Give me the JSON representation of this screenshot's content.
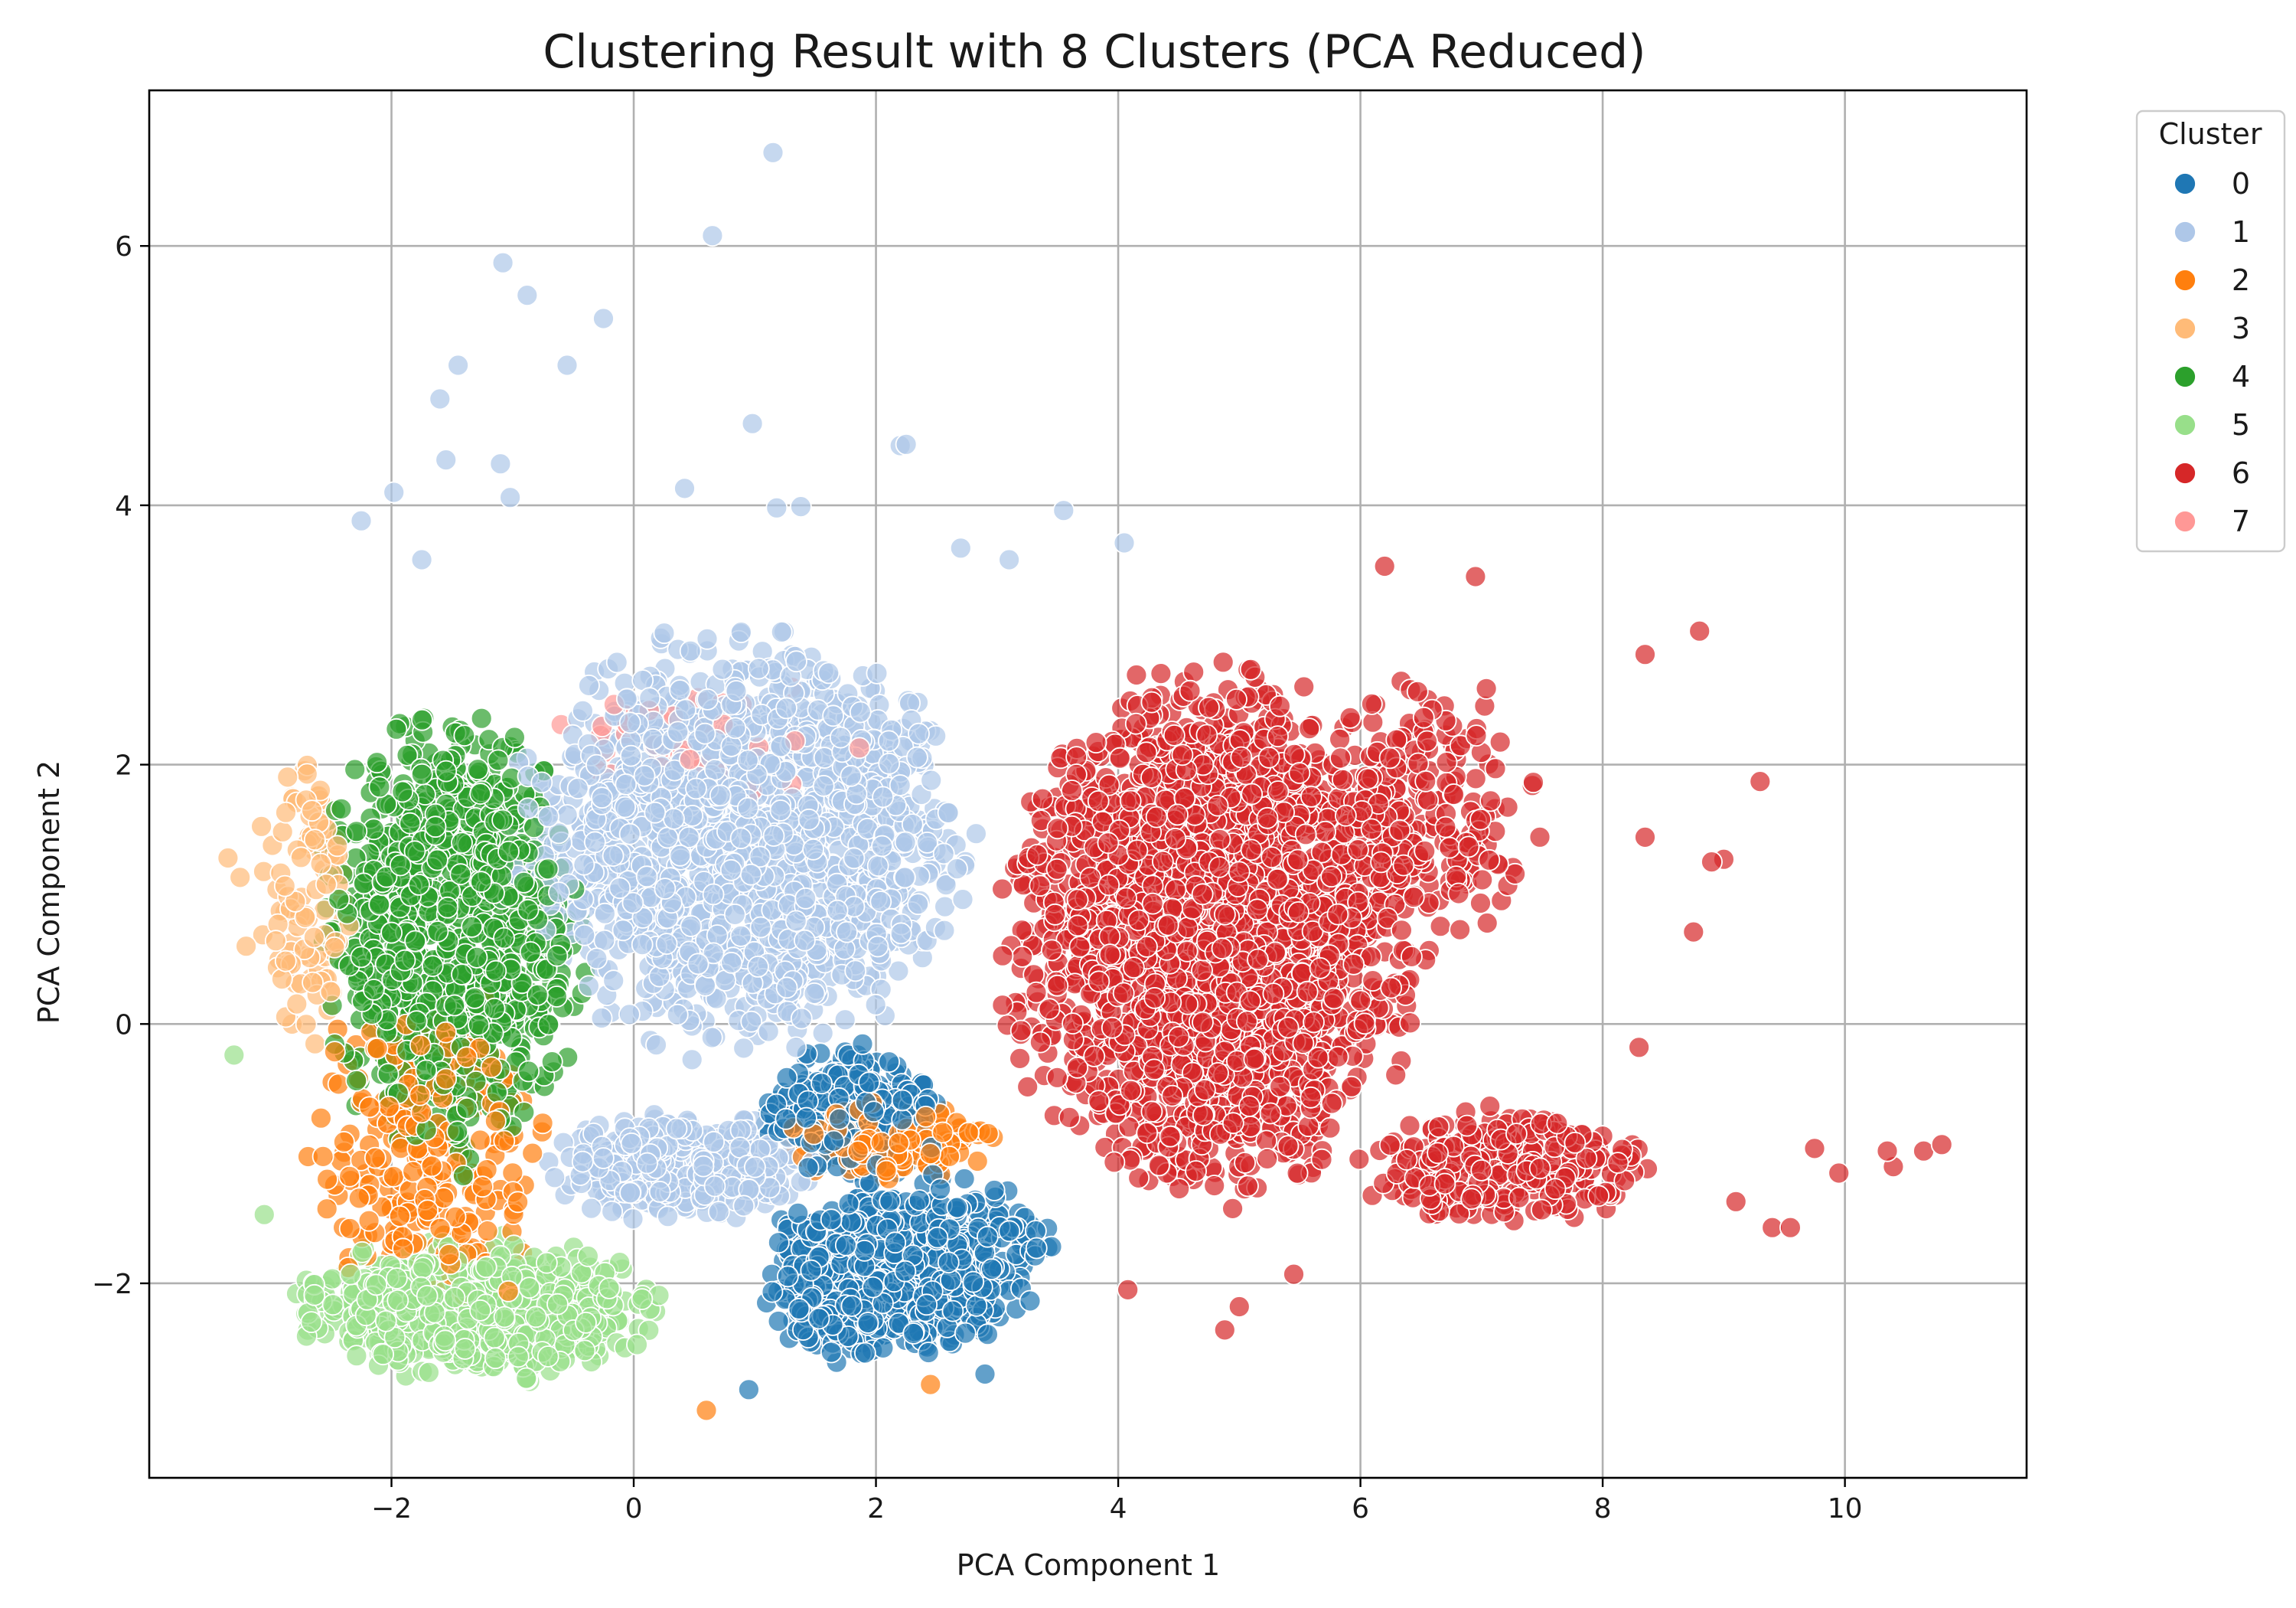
{
  "chart_data": {
    "type": "scatter",
    "title": "Clustering Result with 8 Clusters (PCA Reduced)",
    "xlabel": "PCA Component 1",
    "ylabel": "PCA Component 2",
    "xlim": [
      -4.0,
      11.5
    ],
    "ylim": [
      -3.5,
      7.2
    ],
    "x_ticks": [
      -2,
      0,
      2,
      4,
      6,
      8,
      10
    ],
    "y_ticks": [
      -2,
      0,
      2,
      4,
      6
    ],
    "x_tick_labels": [
      "−2",
      "0",
      "2",
      "4",
      "6",
      "8",
      "10"
    ],
    "y_tick_labels": [
      "−2",
      "0",
      "2",
      "4",
      "6"
    ],
    "grid": true,
    "point_alpha": 0.7,
    "legend": {
      "title": "Cluster",
      "placement": "outside-top-right",
      "entries": [
        {
          "label": "0",
          "color": "#1f77b4"
        },
        {
          "label": "1",
          "color": "#aec7e8"
        },
        {
          "label": "2",
          "color": "#ff7f0e"
        },
        {
          "label": "3",
          "color": "#ffbb78"
        },
        {
          "label": "4",
          "color": "#2ca02c"
        },
        {
          "label": "5",
          "color": "#98df8a"
        },
        {
          "label": "6",
          "color": "#d62728"
        },
        {
          "label": "7",
          "color": "#ff9896"
        }
      ]
    },
    "cluster_regions": [
      {
        "cluster": "0",
        "count": 700,
        "shape": "ellipse",
        "center": [
          2.2,
          -1.9
        ],
        "radius": [
          1.35,
          0.75
        ],
        "rotation_deg": 10
      },
      {
        "cluster": "0",
        "count": 260,
        "shape": "ellipse",
        "center": [
          1.8,
          -0.7
        ],
        "radius": [
          0.8,
          0.6
        ],
        "rotation_deg": 0
      },
      {
        "cluster": "1",
        "count": 1500,
        "shape": "ellipse",
        "center": [
          0.9,
          1.4
        ],
        "radius": [
          2.1,
          1.75
        ],
        "rotation_deg": 0
      },
      {
        "cluster": "1",
        "count": 350,
        "shape": "ellipse",
        "center": [
          0.4,
          -1.1
        ],
        "radius": [
          1.2,
          0.45
        ],
        "rotation_deg": 0
      },
      {
        "cluster": "2",
        "count": 260,
        "shape": "ellipse",
        "center": [
          -1.7,
          -1.0
        ],
        "radius": [
          1.0,
          1.5
        ],
        "rotation_deg": 0
      },
      {
        "cluster": "2",
        "count": 150,
        "shape": "ellipse",
        "center": [
          2.1,
          -0.9
        ],
        "radius": [
          1.0,
          0.35
        ],
        "rotation_deg": 0
      },
      {
        "cluster": "3",
        "count": 110,
        "shape": "ellipse",
        "center": [
          -2.7,
          1.0
        ],
        "radius": [
          0.45,
          1.3
        ],
        "rotation_deg": 0
      },
      {
        "cluster": "4",
        "count": 900,
        "shape": "ellipse",
        "center": [
          -1.5,
          0.7
        ],
        "radius": [
          1.2,
          1.9
        ],
        "rotation_deg": 0
      },
      {
        "cluster": "5",
        "count": 700,
        "shape": "ellipse",
        "center": [
          -1.3,
          -2.2
        ],
        "radius": [
          1.6,
          0.6
        ],
        "rotation_deg": 0
      },
      {
        "cluster": "6",
        "count": 2200,
        "shape": "ellipse",
        "center": [
          4.8,
          0.7
        ],
        "radius": [
          1.9,
          2.2
        ],
        "rotation_deg": 0
      },
      {
        "cluster": "6",
        "count": 300,
        "shape": "ellipse",
        "center": [
          7.2,
          -1.1
        ],
        "radius": [
          1.3,
          0.5
        ],
        "rotation_deg": 0
      },
      {
        "cluster": "6",
        "count": 200,
        "shape": "ellipse",
        "center": [
          6.6,
          1.6
        ],
        "radius": [
          0.9,
          1.2
        ],
        "rotation_deg": 0
      },
      {
        "cluster": "7",
        "count": 45,
        "shape": "ellipse",
        "center": [
          0.5,
          2.2
        ],
        "radius": [
          1.6,
          0.6
        ],
        "rotation_deg": 0
      }
    ],
    "outliers": [
      {
        "cluster": "1",
        "x": 1.15,
        "y": 6.72
      },
      {
        "cluster": "1",
        "x": 0.65,
        "y": 6.08
      },
      {
        "cluster": "1",
        "x": -1.08,
        "y": 5.87
      },
      {
        "cluster": "1",
        "x": -0.88,
        "y": 5.62
      },
      {
        "cluster": "1",
        "x": -0.25,
        "y": 5.44
      },
      {
        "cluster": "1",
        "x": -1.45,
        "y": 5.08
      },
      {
        "cluster": "1",
        "x": -0.55,
        "y": 5.08
      },
      {
        "cluster": "1",
        "x": -1.6,
        "y": 4.82
      },
      {
        "cluster": "1",
        "x": 0.98,
        "y": 4.63
      },
      {
        "cluster": "1",
        "x": 2.2,
        "y": 4.46
      },
      {
        "cluster": "1",
        "x": 2.25,
        "y": 4.47
      },
      {
        "cluster": "1",
        "x": -1.55,
        "y": 4.35
      },
      {
        "cluster": "1",
        "x": -1.1,
        "y": 4.32
      },
      {
        "cluster": "1",
        "x": 0.42,
        "y": 4.13
      },
      {
        "cluster": "1",
        "x": -1.98,
        "y": 4.1
      },
      {
        "cluster": "1",
        "x": -1.02,
        "y": 4.06
      },
      {
        "cluster": "1",
        "x": 1.18,
        "y": 3.98
      },
      {
        "cluster": "1",
        "x": 1.38,
        "y": 3.99
      },
      {
        "cluster": "1",
        "x": 3.55,
        "y": 3.96
      },
      {
        "cluster": "1",
        "x": -2.25,
        "y": 3.88
      },
      {
        "cluster": "1",
        "x": 4.05,
        "y": 3.71
      },
      {
        "cluster": "1",
        "x": 2.7,
        "y": 3.67
      },
      {
        "cluster": "1",
        "x": -1.75,
        "y": 3.58
      },
      {
        "cluster": "1",
        "x": 3.1,
        "y": 3.58
      },
      {
        "cluster": "6",
        "x": 9.3,
        "y": 1.87
      },
      {
        "cluster": "6",
        "x": 8.9,
        "y": 1.25
      },
      {
        "cluster": "6",
        "x": 9.0,
        "y": 1.27
      },
      {
        "cluster": "6",
        "x": 8.35,
        "y": 1.44
      },
      {
        "cluster": "6",
        "x": 8.75,
        "y": 0.71
      },
      {
        "cluster": "6",
        "x": 8.8,
        "y": 3.03
      },
      {
        "cluster": "6",
        "x": 8.35,
        "y": 2.85
      },
      {
        "cluster": "6",
        "x": 6.95,
        "y": 3.45
      },
      {
        "cluster": "6",
        "x": 6.2,
        "y": 3.53
      },
      {
        "cluster": "6",
        "x": 10.8,
        "y": -0.93
      },
      {
        "cluster": "6",
        "x": 10.65,
        "y": -0.98
      },
      {
        "cluster": "6",
        "x": 10.35,
        "y": -0.98
      },
      {
        "cluster": "6",
        "x": 10.4,
        "y": -1.1
      },
      {
        "cluster": "6",
        "x": 9.95,
        "y": -1.15
      },
      {
        "cluster": "6",
        "x": 9.75,
        "y": -0.96
      },
      {
        "cluster": "6",
        "x": 9.55,
        "y": -1.57
      },
      {
        "cluster": "6",
        "x": 9.4,
        "y": -1.57
      },
      {
        "cluster": "6",
        "x": 9.1,
        "y": -1.37
      },
      {
        "cluster": "6",
        "x": 8.3,
        "y": -0.18
      },
      {
        "cluster": "6",
        "x": 4.88,
        "y": -2.36
      },
      {
        "cluster": "6",
        "x": 5.45,
        "y": -1.93
      },
      {
        "cluster": "6",
        "x": 5.0,
        "y": -2.18
      },
      {
        "cluster": "6",
        "x": 4.08,
        "y": -2.05
      },
      {
        "cluster": "0",
        "x": 2.9,
        "y": -2.7
      },
      {
        "cluster": "0",
        "x": 0.95,
        "y": -2.82
      },
      {
        "cluster": "2",
        "x": 0.6,
        "y": -2.98
      },
      {
        "cluster": "2",
        "x": 2.45,
        "y": -2.78
      },
      {
        "cluster": "5",
        "x": -3.3,
        "y": -0.24
      },
      {
        "cluster": "5",
        "x": -3.05,
        "y": -1.47
      },
      {
        "cluster": "3",
        "x": -3.35,
        "y": 1.28
      },
      {
        "cluster": "3",
        "x": -3.25,
        "y": 1.13
      },
      {
        "cluster": "3",
        "x": -3.2,
        "y": 0.6
      }
    ]
  }
}
